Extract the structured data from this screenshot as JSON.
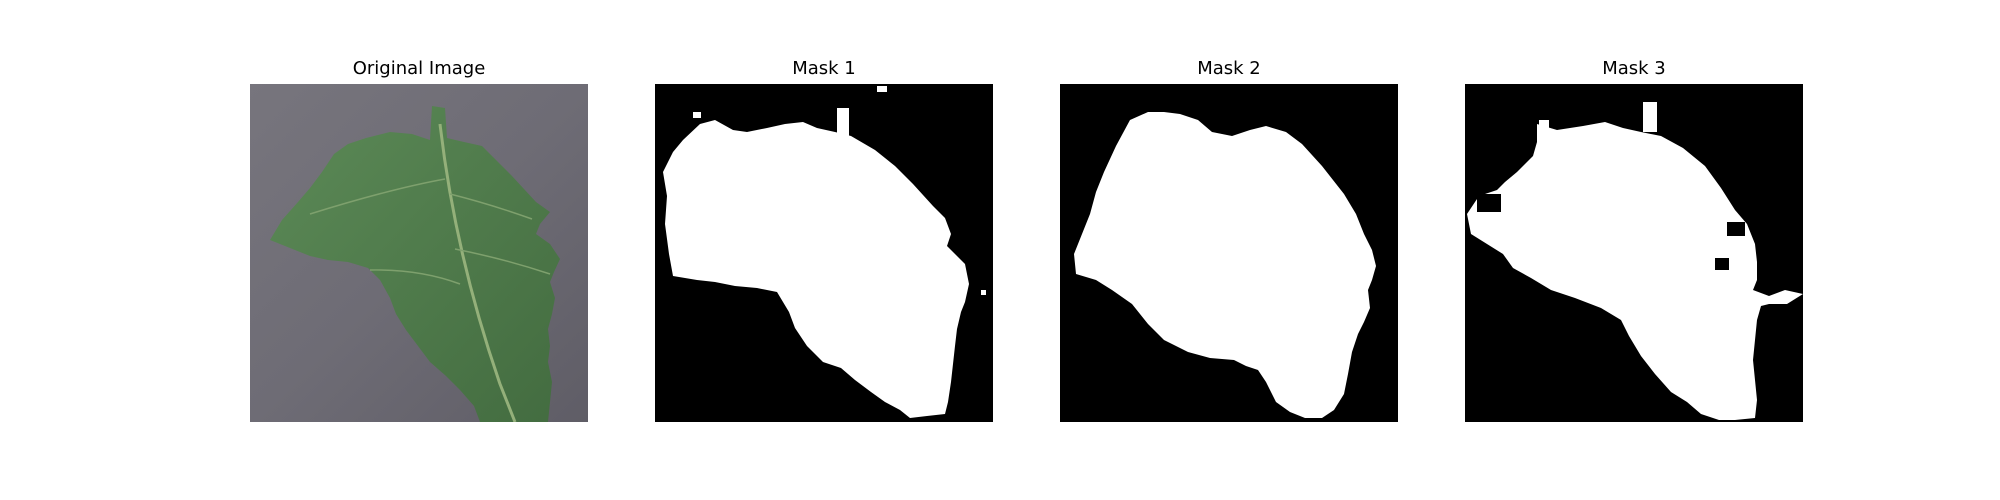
{
  "figure": {
    "panels": [
      {
        "title": "Original Image",
        "kind": "photo"
      },
      {
        "title": "Mask 1",
        "kind": "mask"
      },
      {
        "title": "Mask 2",
        "kind": "mask"
      },
      {
        "title": "Mask 3",
        "kind": "mask"
      }
    ]
  },
  "colors": {
    "background": "#ffffff",
    "mask_background": "#000000",
    "mask_foreground": "#ffffff",
    "leaf": "#4f7a4a",
    "ground": "#7a7880"
  }
}
